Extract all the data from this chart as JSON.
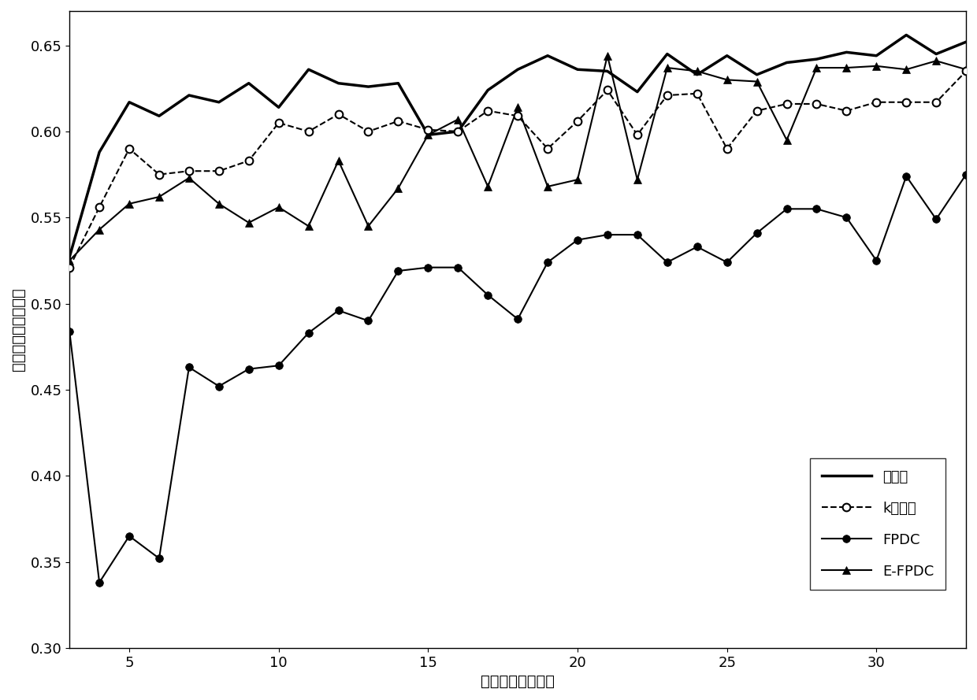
{
  "title": "",
  "xlabel": "选择的波段数目：",
  "ylabel": "分类的整体正确率：",
  "xlim": [
    3,
    33
  ],
  "ylim": [
    0.3,
    0.67
  ],
  "xticks": [
    5,
    10,
    15,
    20,
    25,
    30
  ],
  "yticks": [
    0.3,
    0.35,
    0.4,
    0.45,
    0.5,
    0.55,
    0.6,
    0.65
  ],
  "k_center": {
    "x": [
      3,
      4,
      5,
      6,
      7,
      8,
      9,
      10,
      11,
      12,
      13,
      14,
      15,
      16,
      17,
      18,
      19,
      20,
      21,
      22,
      23,
      24,
      25,
      26,
      27,
      28,
      29,
      30,
      31,
      32,
      33
    ],
    "y": [
      0.521,
      0.556,
      0.59,
      0.575,
      0.577,
      0.577,
      0.583,
      0.605,
      0.6,
      0.61,
      0.6,
      0.606,
      0.601,
      0.6,
      0.612,
      0.609,
      0.59,
      0.606,
      0.624,
      0.598,
      0.621,
      0.622,
      0.59,
      0.612,
      0.616,
      0.616,
      0.612,
      0.617,
      0.617,
      0.617,
      0.635
    ],
    "color": "#000000",
    "linestyle": "--",
    "marker": "o",
    "markersize": 7,
    "linewidth": 1.5,
    "label": "k中心点",
    "markerfacecolor": "white"
  },
  "FPDC": {
    "x": [
      3,
      4,
      5,
      6,
      7,
      8,
      9,
      10,
      11,
      12,
      13,
      14,
      15,
      16,
      17,
      18,
      19,
      20,
      21,
      22,
      23,
      24,
      25,
      26,
      27,
      28,
      29,
      30,
      31,
      32,
      33
    ],
    "y": [
      0.484,
      0.338,
      0.365,
      0.352,
      0.463,
      0.452,
      0.462,
      0.464,
      0.483,
      0.496,
      0.49,
      0.519,
      0.521,
      0.521,
      0.505,
      0.491,
      0.524,
      0.537,
      0.54,
      0.54,
      0.524,
      0.533,
      0.524,
      0.541,
      0.555,
      0.555,
      0.55,
      0.525,
      0.574,
      0.549,
      0.575
    ],
    "color": "#000000",
    "linestyle": "-",
    "marker": "o",
    "markersize": 7,
    "linewidth": 1.5,
    "label": "FPDC",
    "markerfacecolor": "black"
  },
  "EFPDC": {
    "x": [
      3,
      4,
      5,
      6,
      7,
      8,
      9,
      10,
      11,
      12,
      13,
      14,
      15,
      16,
      17,
      18,
      19,
      20,
      21,
      22,
      23,
      24,
      25,
      26,
      27,
      28,
      29,
      30,
      31,
      32,
      33
    ],
    "y": [
      0.525,
      0.543,
      0.558,
      0.562,
      0.573,
      0.558,
      0.547,
      0.556,
      0.545,
      0.583,
      0.545,
      0.567,
      0.598,
      0.607,
      0.568,
      0.614,
      0.568,
      0.572,
      0.644,
      0.572,
      0.637,
      0.635,
      0.63,
      0.629,
      0.595,
      0.637,
      0.637,
      0.638,
      0.636,
      0.641,
      0.636
    ],
    "color": "#000000",
    "linestyle": "-",
    "marker": "^",
    "markersize": 7,
    "linewidth": 1.5,
    "label": "E-FPDC",
    "markerfacecolor": "black"
  },
  "invention": {
    "x": [
      3,
      4,
      5,
      6,
      7,
      8,
      9,
      10,
      11,
      12,
      13,
      14,
      15,
      16,
      17,
      18,
      19,
      20,
      21,
      22,
      23,
      24,
      25,
      26,
      27,
      28,
      29,
      30,
      31,
      32,
      33
    ],
    "y": [
      0.527,
      0.588,
      0.617,
      0.609,
      0.621,
      0.617,
      0.628,
      0.614,
      0.636,
      0.628,
      0.626,
      0.628,
      0.598,
      0.6,
      0.624,
      0.636,
      0.644,
      0.636,
      0.635,
      0.623,
      0.645,
      0.633,
      0.644,
      0.633,
      0.64,
      0.642,
      0.646,
      0.644,
      0.656,
      0.645,
      0.652
    ],
    "color": "#000000",
    "linestyle": "-",
    "linewidth": 2.5,
    "label": "本发明"
  },
  "font_size": 14,
  "tick_fontsize": 13,
  "legend_fontsize": 13
}
